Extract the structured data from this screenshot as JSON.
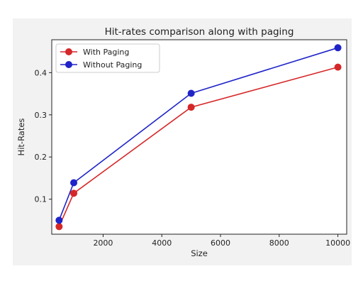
{
  "chart_data": {
    "type": "line",
    "title": "Hit-rates comparison along with paging",
    "xlabel": "Size",
    "ylabel": "Hit-Rates",
    "xlim": [
      250,
      10300
    ],
    "ylim": [
      0.017,
      0.478
    ],
    "xticks": [
      2000,
      4000,
      6000,
      8000,
      10000
    ],
    "yticks": [
      0.1,
      0.2,
      0.3,
      0.4
    ],
    "xtick_labels": [
      "2000",
      "4000",
      "6000",
      "8000",
      "10000"
    ],
    "ytick_labels": [
      "0.1",
      "0.2",
      "0.3",
      "0.4"
    ],
    "legend_position": "top-left",
    "grid": false,
    "x": [
      500,
      1000,
      5000,
      10000
    ],
    "series": [
      {
        "name": "With Paging",
        "color": "#d62728",
        "values": [
          0.035,
          0.114,
          0.318,
          0.413
        ]
      },
      {
        "name": "Without Paging",
        "color": "#1f24c8",
        "values": [
          0.05,
          0.139,
          0.351,
          0.459
        ]
      }
    ]
  }
}
